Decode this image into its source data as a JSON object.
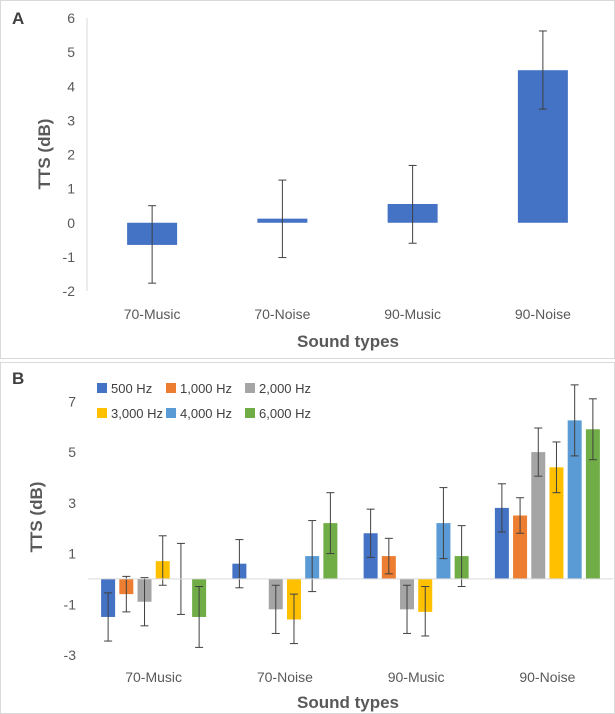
{
  "panels": {
    "a_letter": "A",
    "b_letter": "B"
  },
  "chart_data": [
    {
      "type": "bar",
      "panel": "A",
      "categories": [
        "70-Music",
        "70-Noise",
        "90-Music",
        "90-Noise"
      ],
      "values": [
        -0.65,
        0.12,
        0.55,
        4.47
      ],
      "error_low": [
        -1.77,
        -1.02,
        -0.6,
        3.33
      ],
      "error_high": [
        0.5,
        1.25,
        1.68,
        5.62
      ],
      "color": "#4472c4",
      "xlabel": "Sound types",
      "ylabel": "TTS (dB)",
      "ylim": [
        -2,
        6
      ],
      "yticks": [
        -2,
        -1,
        0,
        1,
        2,
        3,
        4,
        5,
        6
      ],
      "grid": false
    },
    {
      "type": "bar",
      "panel": "B",
      "categories": [
        "70-Music",
        "70-Noise",
        "90-Music",
        "90-Noise"
      ],
      "series": [
        {
          "name": "500 Hz",
          "color": "#4472c4",
          "values": [
            -1.5,
            0.6,
            1.8,
            2.8
          ],
          "error_low": [
            -2.45,
            -0.35,
            0.85,
            1.85
          ],
          "error_high": [
            -0.55,
            1.55,
            2.75,
            3.75
          ]
        },
        {
          "name": "1,000 Hz",
          "color": "#ed7d31",
          "values": [
            -0.6,
            0.0,
            0.9,
            2.5
          ],
          "error_low": [
            -1.3,
            0.0,
            0.2,
            1.8
          ],
          "error_high": [
            0.1,
            0.0,
            1.6,
            3.2
          ]
        },
        {
          "name": "2,000 Hz",
          "color": "#a5a5a5",
          "values": [
            -0.9,
            -1.2,
            -1.2,
            5.0
          ],
          "error_low": [
            -1.85,
            -2.15,
            -2.15,
            4.05
          ],
          "error_high": [
            0.05,
            -0.25,
            -0.25,
            5.95
          ]
        },
        {
          "name": "3,000 Hz",
          "color": "#ffc000",
          "values": [
            0.7,
            -1.6,
            -1.3,
            4.4
          ],
          "error_low": [
            -0.25,
            -2.55,
            -2.25,
            3.4
          ],
          "error_high": [
            1.7,
            -0.6,
            -0.3,
            5.4
          ]
        },
        {
          "name": "4,000 Hz",
          "color": "#5b9bd5",
          "values": [
            0.0,
            0.9,
            2.2,
            6.25
          ],
          "error_low": [
            -1.4,
            -0.5,
            0.8,
            4.85
          ],
          "error_high": [
            1.4,
            2.3,
            3.6,
            7.65
          ]
        },
        {
          "name": "6,000 Hz",
          "color": "#70ad47",
          "values": [
            -1.5,
            2.2,
            0.9,
            5.9
          ],
          "error_low": [
            -2.7,
            1.0,
            -0.3,
            4.7
          ],
          "error_high": [
            -0.3,
            3.4,
            2.1,
            7.1
          ]
        }
      ],
      "xlabel": "Sound types",
      "ylabel": "TTS (dB)",
      "ylim": [
        -3,
        8
      ],
      "yticks": [
        -3,
        -1,
        1,
        3,
        5,
        7
      ],
      "legend_position": "top-left",
      "grid": false
    }
  ]
}
